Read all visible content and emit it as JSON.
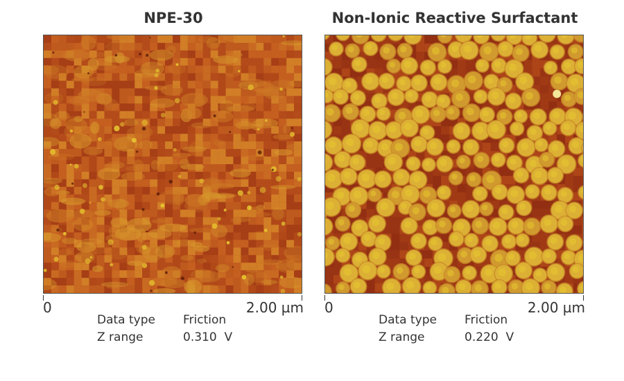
{
  "panels": [
    {
      "title": "NPE-30",
      "axis_start": "0",
      "axis_end": "2.00 µm",
      "data_type_label": "Data type",
      "data_type_value": "Friction",
      "z_range_label": "Z range",
      "z_range_value": "0.310  V"
    },
    {
      "title": "Non-Ionic Reactive Surfactant",
      "axis_start": "0",
      "axis_end": "2.00 µm",
      "data_type_label": "Data type",
      "data_type_value": "Friction",
      "z_range_label": "Z range",
      "z_range_value": "0.220  V"
    }
  ],
  "colors": {
    "dark": "#9c3514",
    "mid": "#c8641e",
    "light": "#e8c830"
  }
}
